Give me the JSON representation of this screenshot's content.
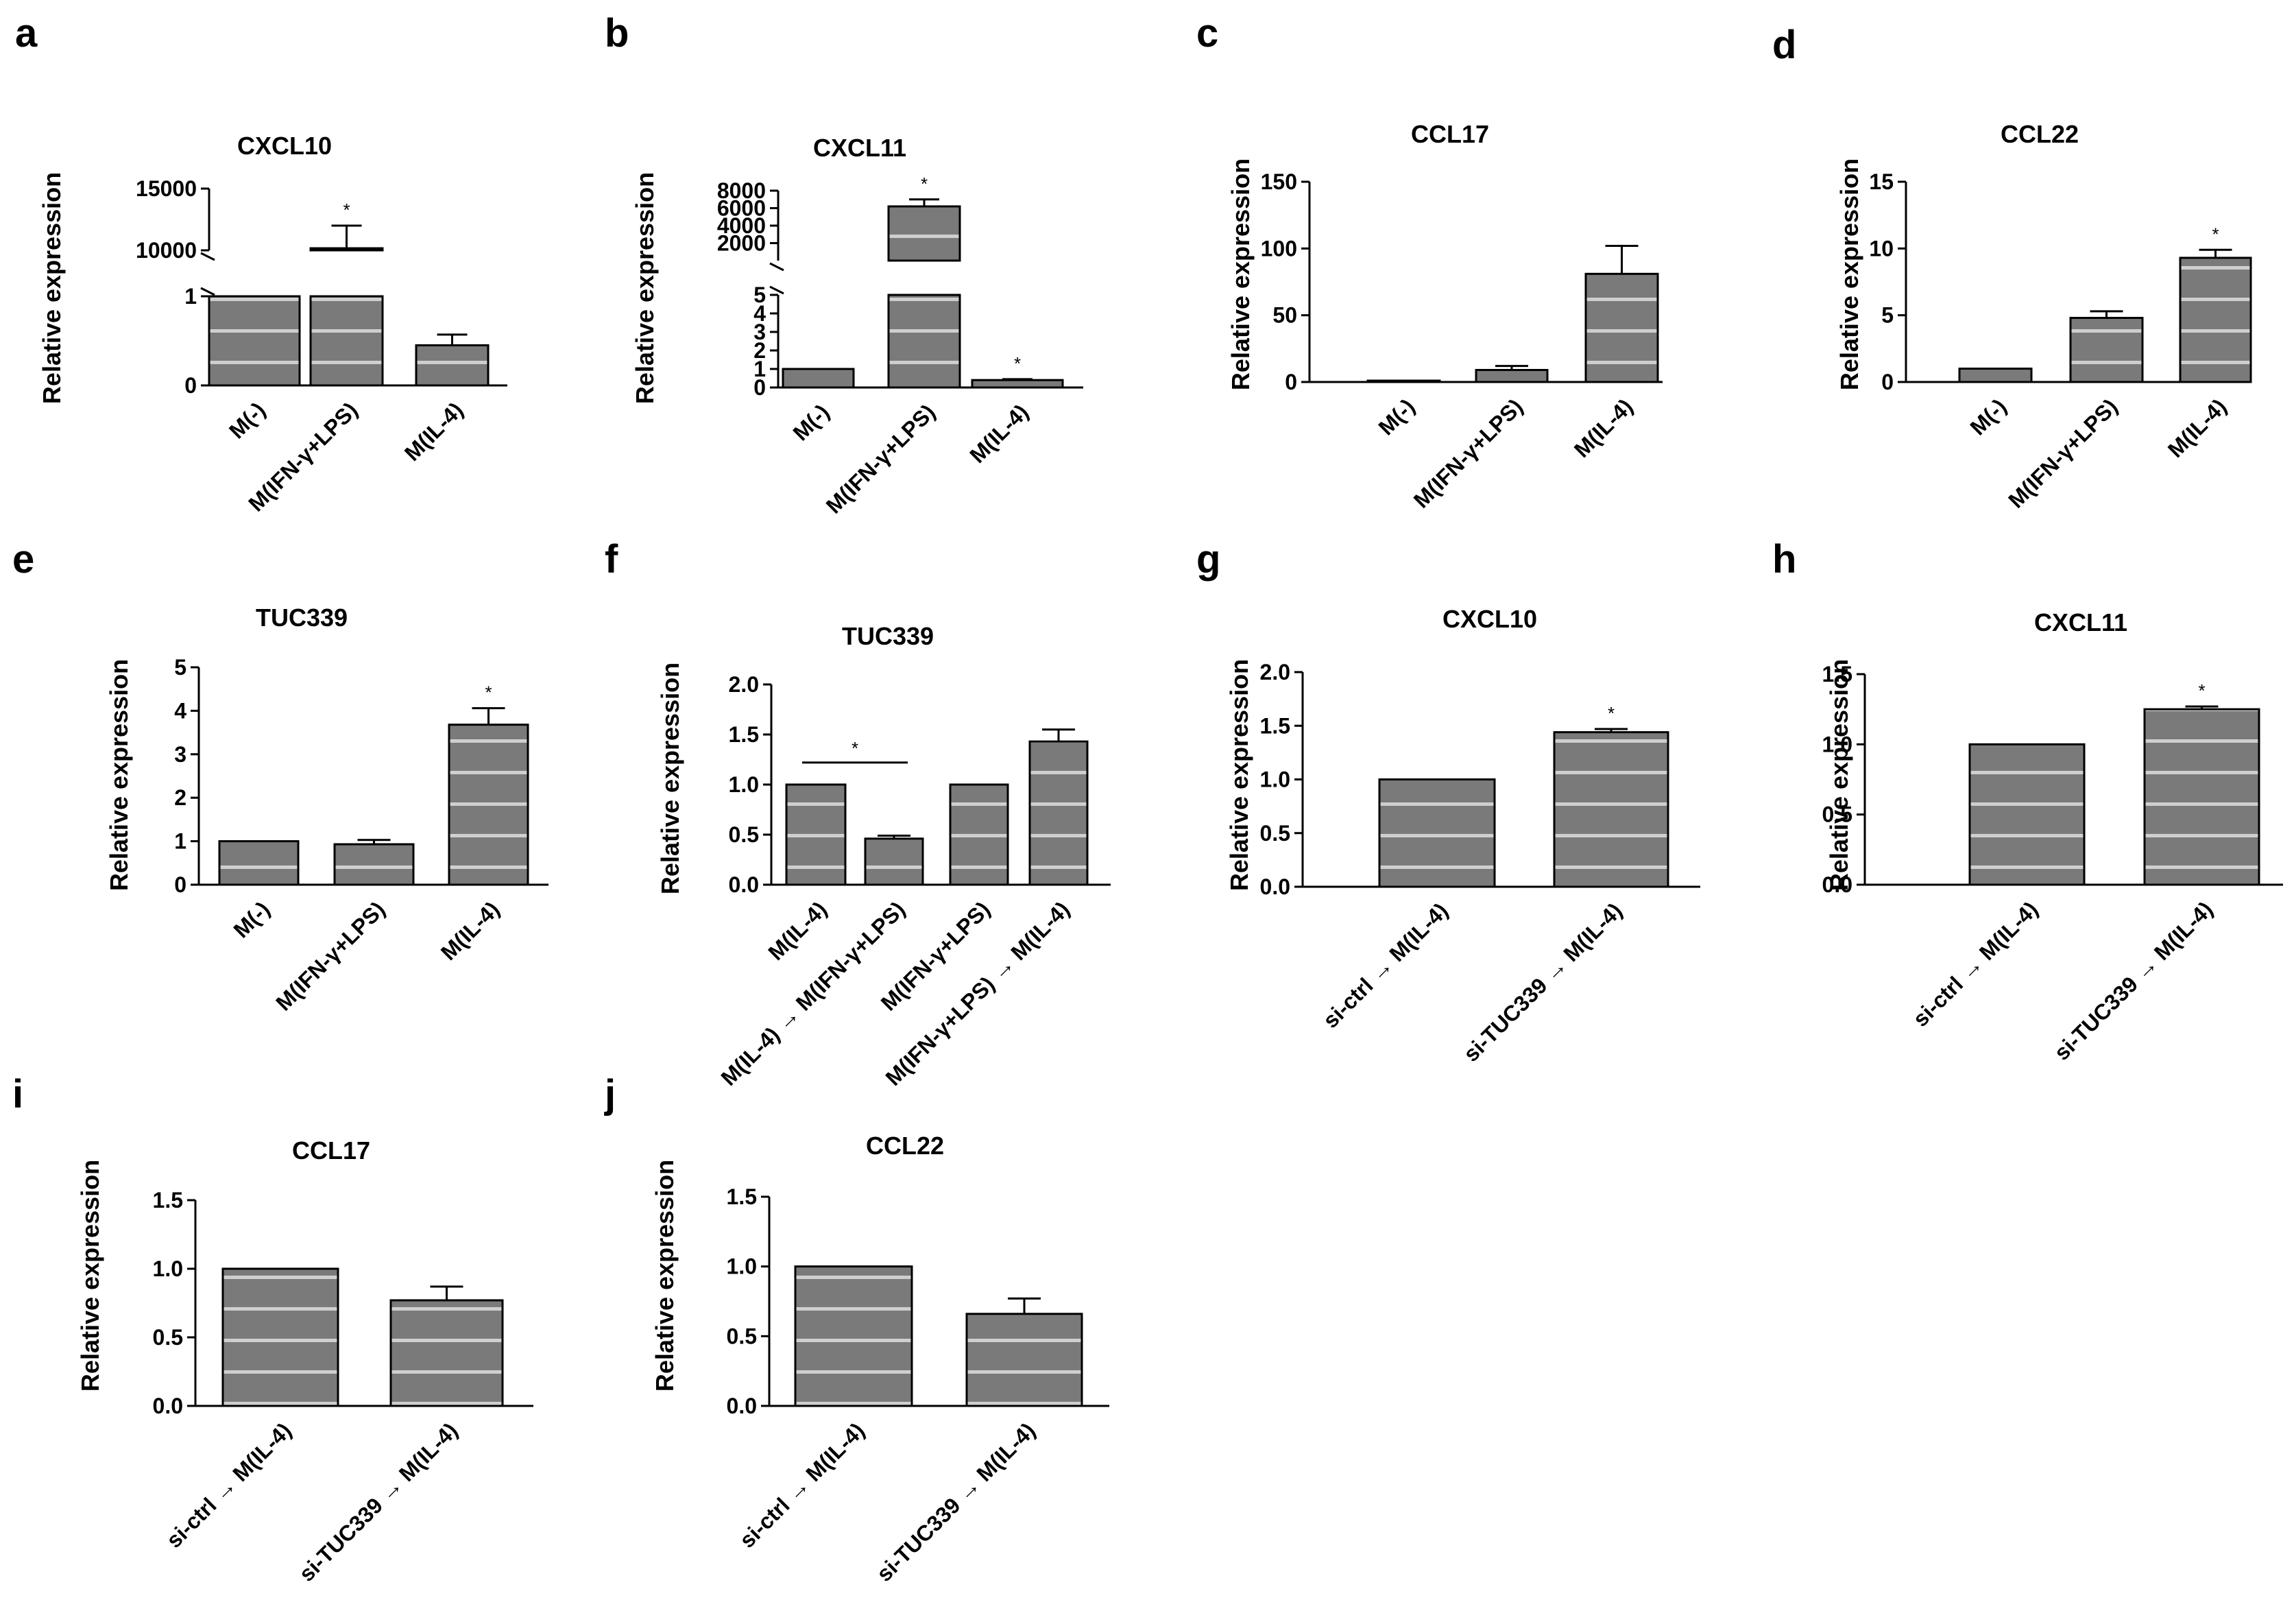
{
  "figure": {
    "type": "multi-panel bar chart figure",
    "colors": {
      "bar_fill": "#7a7a7a",
      "stripe": "#ffffff",
      "axis": "#000000"
    }
  },
  "chart_data": [
    {
      "id": "a",
      "panel": "a",
      "type": "bar",
      "title": "CXCL10",
      "ylabel": "Relative expression",
      "categories": [
        "M(-)",
        "M(IFN-γ+LPS)",
        "M(IL-4)"
      ],
      "values": [
        1,
        10000,
        0.45
      ],
      "errors": [
        0,
        2000,
        0.12
      ],
      "significance": [
        "",
        "*",
        ""
      ],
      "broken_axis": {
        "lower": {
          "range": [
            0,
            1
          ],
          "ticks": [
            0,
            1
          ]
        },
        "upper": {
          "range": [
            10000,
            15000
          ],
          "ticks": [
            10000,
            15000
          ]
        }
      }
    },
    {
      "id": "b",
      "panel": "b",
      "type": "bar",
      "title": "CXCL11",
      "ylabel": "Relative expression",
      "categories": [
        "M(-)",
        "M(IFN-γ+LPS)",
        "M(IL-4)"
      ],
      "values": [
        1,
        6200,
        0.4
      ],
      "errors": [
        0,
        800,
        0.05
      ],
      "significance": [
        "",
        "*",
        "*"
      ],
      "broken_axis": {
        "lower": {
          "range": [
            0,
            5
          ],
          "ticks": [
            0,
            1,
            2,
            3,
            4,
            5
          ]
        },
        "upper": {
          "range": [
            0,
            8000
          ],
          "ticks": [
            2000,
            4000,
            6000,
            8000
          ]
        }
      }
    },
    {
      "id": "c",
      "panel": "c",
      "type": "bar",
      "title": "CCL17",
      "ylabel": "Relative expression",
      "categories": [
        "M(-)",
        "M(IFN-γ+LPS)",
        "M(IL-4)"
      ],
      "values": [
        1,
        9,
        81
      ],
      "errors": [
        0,
        3,
        21
      ],
      "significance": [
        "",
        "",
        ""
      ],
      "ylim": [
        0,
        150
      ],
      "yticks": [
        0,
        50,
        100,
        150
      ]
    },
    {
      "id": "d",
      "panel": "d",
      "type": "bar",
      "title": "CCL22",
      "ylabel": "Relative expression",
      "categories": [
        "M(-)",
        "M(IFN-γ+LPS)",
        "M(IL-4)"
      ],
      "values": [
        1,
        4.8,
        9.3
      ],
      "errors": [
        0,
        0.5,
        0.6
      ],
      "significance": [
        "",
        "",
        "*"
      ],
      "ylim": [
        0,
        15
      ],
      "yticks": [
        0,
        5,
        10,
        15
      ]
    },
    {
      "id": "e",
      "panel": "e",
      "type": "bar",
      "title": "TUC339",
      "ylabel": "Relative expression",
      "categories": [
        "M(-)",
        "M(IFN-γ+LPS)",
        "M(IL-4)"
      ],
      "values": [
        1,
        0.93,
        3.68
      ],
      "errors": [
        0,
        0.1,
        0.38
      ],
      "significance": [
        "",
        "",
        "*"
      ],
      "ylim": [
        0,
        5
      ],
      "yticks": [
        0,
        1,
        2,
        3,
        4,
        5
      ]
    },
    {
      "id": "f",
      "panel": "f",
      "type": "bar",
      "title": "TUC339",
      "ylabel": "Relative expression",
      "categories": [
        "M(IL-4)",
        "M(IL-4) → M(IFN-γ+LPS)",
        "M(IFN-γ+LPS)",
        "M(IFN-γ+LPS) → M(IL-4)"
      ],
      "values": [
        1.0,
        0.46,
        1.0,
        1.43
      ],
      "errors": [
        0,
        0.03,
        0,
        0.12
      ],
      "significance": [
        "",
        "",
        "",
        ""
      ],
      "bracket": {
        "from": 0,
        "to": 1,
        "label": "*"
      },
      "ylim": [
        0,
        2.0
      ],
      "yticks": [
        "0.0",
        "0.5",
        "1.0",
        "1.5",
        "2.0"
      ]
    },
    {
      "id": "g",
      "panel": "g",
      "type": "bar",
      "title": "CXCL10",
      "ylabel": "Relative expression",
      "categories": [
        "si-ctrl → M(IL-4)",
        "si-TUC339 → M(IL-4)"
      ],
      "values": [
        1.0,
        1.44
      ],
      "errors": [
        0,
        0.03
      ],
      "significance": [
        "",
        "*"
      ],
      "ylim": [
        0,
        2.0
      ],
      "yticks": [
        "0.0",
        "0.5",
        "1.0",
        "1.5",
        "2.0"
      ]
    },
    {
      "id": "h",
      "panel": "h",
      "type": "bar",
      "title": "CXCL11",
      "ylabel": "Relative expression",
      "categories": [
        "si-ctrl → M(IL-4)",
        "si-TUC339 → M(IL-4)"
      ],
      "values": [
        1.0,
        1.25
      ],
      "errors": [
        0,
        0.02
      ],
      "significance": [
        "",
        "*"
      ],
      "ylim": [
        0,
        1.5
      ],
      "yticks": [
        "0.0",
        "0.5",
        "1.0",
        "1.5"
      ]
    },
    {
      "id": "i",
      "panel": "i",
      "type": "bar",
      "title": "CCL17",
      "ylabel": "Relative expression",
      "categories": [
        "si-ctrl → M(IL-4)",
        "si-TUC339 → M(IL-4)"
      ],
      "values": [
        1.0,
        0.77
      ],
      "errors": [
        0,
        0.1
      ],
      "significance": [
        "",
        ""
      ],
      "ylim": [
        0,
        1.5
      ],
      "yticks": [
        "0.0",
        "0.5",
        "1.0",
        "1.5"
      ]
    },
    {
      "id": "j",
      "panel": "j",
      "type": "bar",
      "title": "CCL22",
      "ylabel": "Relative expression",
      "categories": [
        "si-ctrl → M(IL-4)",
        "si-TUC339 → M(IL-4)"
      ],
      "values": [
        1.0,
        0.66
      ],
      "errors": [
        0,
        0.11
      ],
      "significance": [
        "",
        ""
      ],
      "ylim": [
        0,
        1.5
      ],
      "yticks": [
        "0.0",
        "0.5",
        "1.0",
        "1.5"
      ]
    }
  ]
}
